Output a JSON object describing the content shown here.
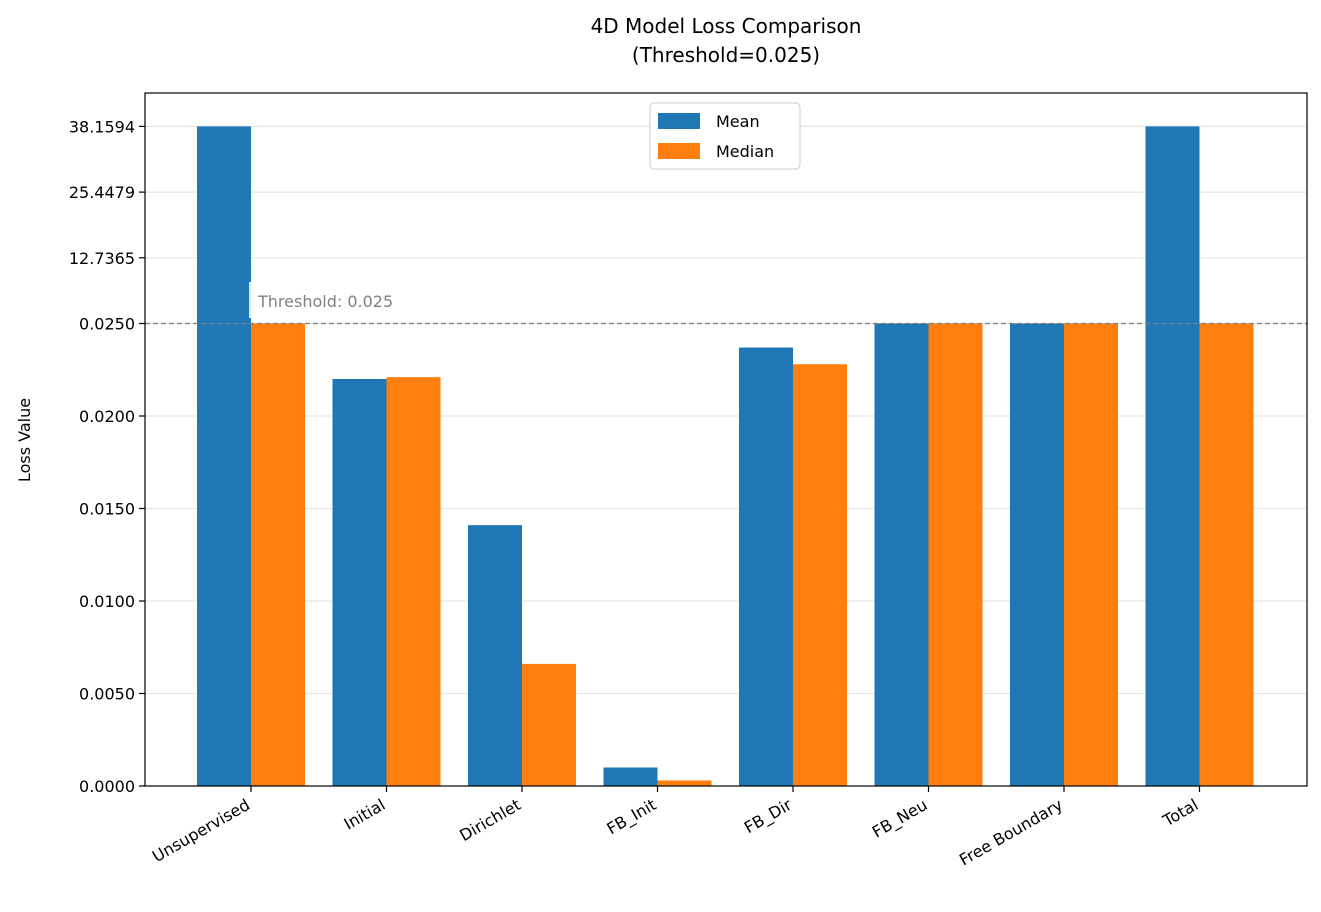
{
  "chart_data": {
    "type": "bar",
    "title": "4D Model Loss Comparison",
    "subtitle": "(Threshold=0.025)",
    "xlabel": "",
    "ylabel": "Loss Value",
    "categories": [
      "Unsupervised",
      "Initial",
      "Dirichlet",
      "FB_Init",
      "FB_Dir",
      "FB_Neu",
      "Free Boundary",
      "Total"
    ],
    "series": [
      {
        "name": "Mean",
        "color": "#1f77b4",
        "values": [
          38.1594,
          0.022,
          0.0141,
          0.001,
          0.0237,
          0.025,
          0.025,
          38.1594
        ]
      },
      {
        "name": "Median",
        "color": "#ff7f0e",
        "values": [
          0.025,
          0.0221,
          0.0066,
          0.0003,
          0.0228,
          0.025,
          0.025,
          0.0252
        ]
      }
    ],
    "y_ticks": [
      "0.0000",
      "0.0050",
      "0.0100",
      "0.0150",
      "0.0200",
      "0.0250",
      "12.7365",
      "25.4479",
      "38.1594"
    ],
    "y_tick_values": [
      0,
      0.005,
      0.01,
      0.015,
      0.02,
      0.025,
      12.7365,
      25.4479,
      38.1594
    ],
    "ylim": [
      0,
      38.1594
    ],
    "threshold": {
      "value": 0.025,
      "label": "Threshold: 0.025",
      "color": "#808080"
    },
    "legend_position": "top-center",
    "grid": "y"
  }
}
